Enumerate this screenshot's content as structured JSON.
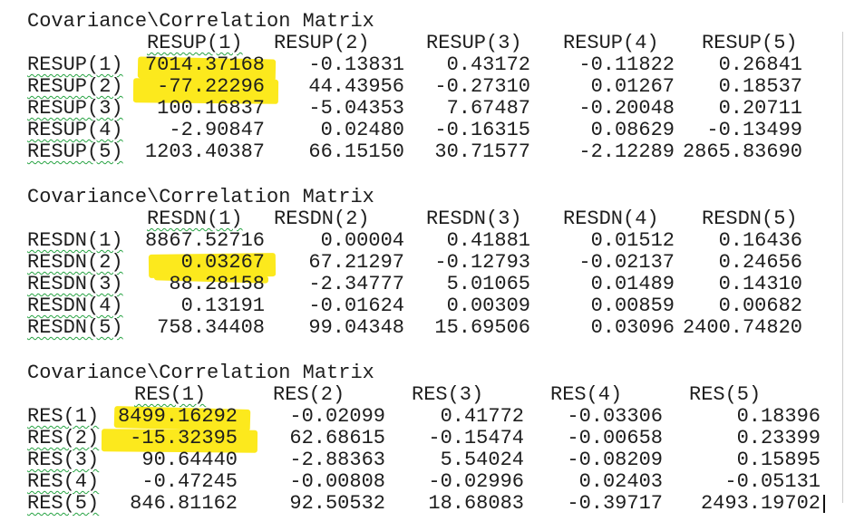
{
  "page": {
    "background": "#ffffff",
    "text_color": "#1e1e1e",
    "highlight_color": "#fce91d",
    "squiggle_color": "#27a343"
  },
  "matrices": [
    {
      "title": "Covariance\\Correlation Matrix",
      "headers": [
        "RESUP(1)",
        "RESUP(2)",
        "RESUP(3)",
        "RESUP(4)",
        "RESUP(5)"
      ],
      "rows": [
        {
          "label": "RESUP(1)",
          "values": [
            "7014.37168",
            "-0.13831",
            "0.43172",
            "-0.11822",
            "0.26841"
          ]
        },
        {
          "label": "RESUP(2)",
          "values": [
            "-77.22296",
            "44.43956",
            "-0.27310",
            "0.01267",
            "0.18537"
          ]
        },
        {
          "label": "RESUP(3)",
          "values": [
            "100.16837",
            "-5.04353",
            "7.67487",
            "-0.20048",
            "0.20711"
          ]
        },
        {
          "label": "RESUP(4)",
          "values": [
            "-2.90847",
            "0.02480",
            "-0.16315",
            "0.08629",
            "-0.13499"
          ]
        },
        {
          "label": "RESUP(5)",
          "values": [
            "1203.40387",
            "66.15150",
            "30.71577",
            "-2.12289",
            "2865.83690"
          ]
        }
      ],
      "highlighted_values": [
        "7014.37168",
        "-77.22296"
      ]
    },
    {
      "title": "Covariance\\Correlation Matrix",
      "headers": [
        "RESDN(1)",
        "RESDN(2)",
        "RESDN(3)",
        "RESDN(4)",
        "RESDN(5)"
      ],
      "rows": [
        {
          "label": "RESDN(1)",
          "values": [
            "8867.52716",
            "0.00004",
            "0.41881",
            "0.01512",
            "0.16436"
          ]
        },
        {
          "label": "RESDN(2)",
          "values": [
            "0.03267",
            "67.21297",
            "-0.12793",
            "-0.02137",
            "0.24656"
          ]
        },
        {
          "label": "RESDN(3)",
          "values": [
            "88.28158",
            "-2.34777",
            "5.01065",
            "0.01489",
            "0.14310"
          ]
        },
        {
          "label": "RESDN(4)",
          "values": [
            "0.13191",
            "-0.01624",
            "0.00309",
            "0.00859",
            "0.00682"
          ]
        },
        {
          "label": "RESDN(5)",
          "values": [
            "758.34408",
            "99.04348",
            "15.69506",
            "0.03096",
            "2400.74820"
          ]
        }
      ],
      "highlighted_values": [
        "0.03267"
      ]
    },
    {
      "title": "Covariance\\Correlation Matrix",
      "headers": [
        "RES(1)",
        "RES(2)",
        "RES(3)",
        "RES(4)",
        "RES(5)"
      ],
      "rows": [
        {
          "label": "RES(1)",
          "values": [
            "8499.16292",
            "-0.02099",
            "0.41772",
            "-0.03306",
            "0.18396"
          ]
        },
        {
          "label": "RES(2)",
          "values": [
            "-15.32395",
            "62.68615",
            "-0.15474",
            "-0.00658",
            "0.23399"
          ]
        },
        {
          "label": "RES(3)",
          "values": [
            "90.64440",
            "-2.88363",
            "5.54024",
            "-0.08209",
            "0.15895"
          ]
        },
        {
          "label": "RES(4)",
          "values": [
            "-0.47245",
            "-0.00808",
            "-0.02996",
            "0.02403",
            "-0.05131"
          ]
        },
        {
          "label": "RES(5)",
          "values": [
            "846.81162",
            "92.50532",
            "18.68083",
            "-0.39717",
            "2493.19702"
          ]
        }
      ],
      "highlighted_values": [
        "8499.16292",
        "-15.32395"
      ]
    }
  ],
  "caret": {
    "present": true,
    "after_value": "2493.19702"
  }
}
